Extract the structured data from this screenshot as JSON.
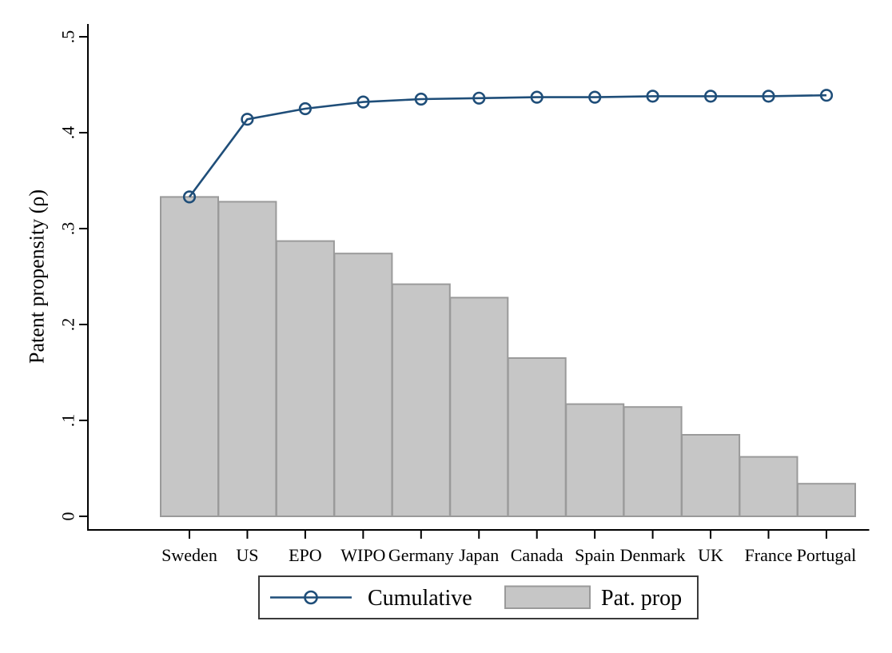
{
  "chart_data": {
    "type": "bar",
    "subtype": "pareto-bar-with-cumulative-line",
    "title": "",
    "xlabel": "",
    "ylabel": "Patent propensity (ρ)",
    "categories": [
      "Sweden",
      "US",
      "EPO",
      "WIPO",
      "Germany",
      "Japan",
      "Canada",
      "Spain",
      "Denmark",
      "UK",
      "France",
      "Portugal"
    ],
    "series": [
      {
        "name": "Cumulative",
        "type": "line",
        "marker": "hollow-circle",
        "color": "#1f4e79",
        "values": [
          0.333,
          0.414,
          0.425,
          0.432,
          0.435,
          0.436,
          0.437,
          0.437,
          0.438,
          0.438,
          0.438,
          0.439
        ]
      },
      {
        "name": "Pat. prop",
        "type": "bar",
        "fill": "#c6c6c6",
        "border": "#9a9a9a",
        "values": [
          0.333,
          0.328,
          0.287,
          0.274,
          0.242,
          0.228,
          0.165,
          0.117,
          0.114,
          0.085,
          0.062,
          0.034
        ]
      }
    ],
    "ylim": [
      0,
      0.5
    ],
    "yticks": [
      0,
      0.1,
      0.2,
      0.3,
      0.4,
      0.5
    ],
    "ytick_labels": [
      "0",
      ".1",
      ".2",
      ".3",
      ".4",
      ".5"
    ],
    "ytick_label_rotation": 90,
    "grid": false,
    "legend": {
      "position": "bottom-center",
      "entries": [
        "Cumulative",
        "Pat. prop"
      ]
    },
    "colors": {
      "line": "#1f4e79",
      "bar_fill": "#c6c6c6",
      "bar_border": "#9a9a9a",
      "axis": "#000000",
      "legend_border": "#3a3a3a",
      "background": "#ffffff"
    }
  }
}
